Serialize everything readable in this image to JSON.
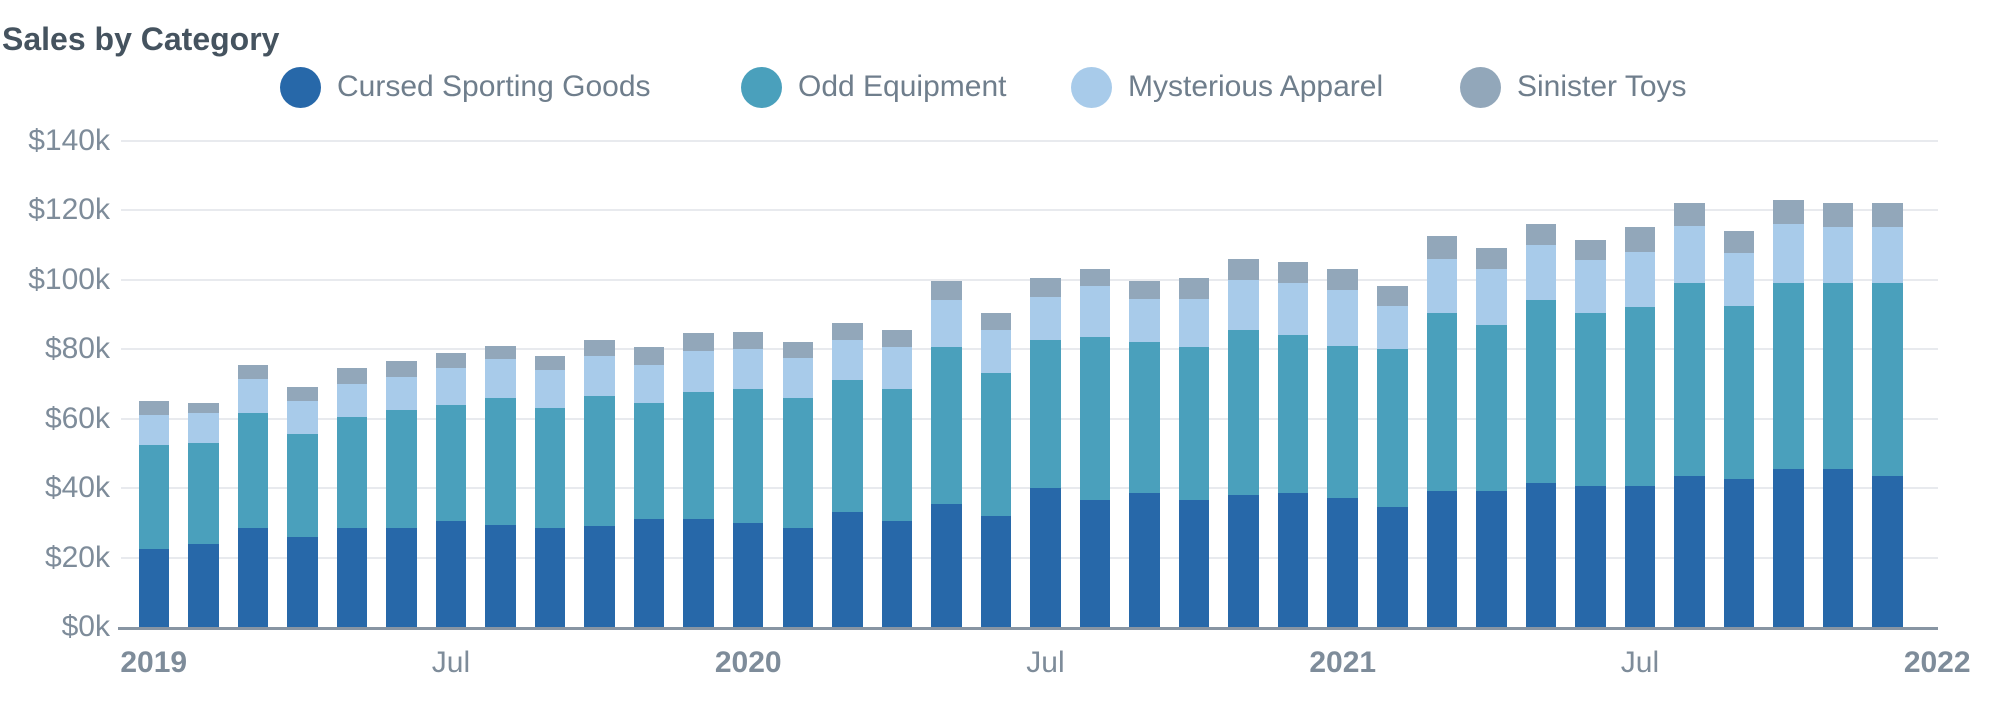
{
  "title": "Sales by Category",
  "chart_data": {
    "type": "bar",
    "stacked": true,
    "title": "Sales by Category",
    "unit": "USD thousands",
    "legend_position": "top",
    "grid": true,
    "ylim": [
      0,
      140
    ],
    "x": [
      "Jan 2019",
      "Feb 2019",
      "Mar 2019",
      "Apr 2019",
      "May 2019",
      "Jun 2019",
      "Jul 2019",
      "Aug 2019",
      "Sep 2019",
      "Oct 2019",
      "Nov 2019",
      "Dec 2019",
      "Jan 2020",
      "Feb 2020",
      "Mar 2020",
      "Apr 2020",
      "May 2020",
      "Jun 2020",
      "Jul 2020",
      "Aug 2020",
      "Sep 2020",
      "Oct 2020",
      "Nov 2020",
      "Dec 2020",
      "Jan 2021",
      "Feb 2021",
      "Mar 2021",
      "Apr 2021",
      "May 2021",
      "Jun 2021",
      "Jul 2021",
      "Aug 2021",
      "Sep 2021",
      "Oct 2021",
      "Nov 2021",
      "Dec 2021"
    ],
    "series": [
      {
        "name": "Cursed Sporting Goods",
        "slug": "cursed-sporting-goods",
        "color": "#2768a9",
        "values": [
          22.5,
          24,
          28.5,
          26,
          28.5,
          28.5,
          30.5,
          29.5,
          28.5,
          29,
          31,
          31,
          30,
          28.5,
          33,
          30.5,
          35.5,
          32,
          40,
          36.5,
          38.5,
          36.5,
          38,
          38.5,
          37,
          34.5,
          39,
          39,
          41.5,
          40.5,
          40.5,
          43.5,
          42.5,
          45.5,
          45.5,
          43.5
        ]
      },
      {
        "name": "Odd Equipment",
        "slug": "odd-equipment",
        "color": "#4aa0bc",
        "values": [
          30,
          29,
          33,
          29.5,
          32,
          34,
          33.5,
          36.5,
          34.5,
          37.5,
          33.5,
          36.5,
          38.5,
          37.5,
          38,
          38,
          45,
          41,
          42.5,
          47,
          43.5,
          44,
          47.5,
          45.5,
          44,
          45.5,
          51.5,
          48,
          52.5,
          50,
          51.5,
          55.5,
          50,
          53.5,
          53.5,
          55.5
        ]
      },
      {
        "name": "Mysterious Apparel",
        "slug": "mysterious-apparel",
        "color": "#a8cbea",
        "values": [
          8.5,
          8.5,
          10,
          9.5,
          9.5,
          9.5,
          10.5,
          11,
          11,
          11.5,
          11,
          12,
          11.5,
          11.5,
          11.5,
          12,
          13.5,
          12.5,
          12.5,
          14.5,
          12.5,
          14,
          14.5,
          15,
          16,
          12.5,
          15.5,
          16,
          16,
          15,
          16,
          16.5,
          15,
          17,
          16,
          16
        ]
      },
      {
        "name": "Sinister Toys",
        "slug": "sinister-toys",
        "color": "#92a7ba",
        "values": [
          4,
          3,
          4,
          4,
          4.5,
          4.5,
          4.5,
          4,
          4,
          4.5,
          5,
          5,
          5,
          4.5,
          5,
          5,
          5.5,
          5,
          5.5,
          5,
          5,
          6,
          6,
          6,
          6,
          5.5,
          6.5,
          6,
          6,
          6,
          7,
          6.5,
          6.5,
          7,
          7,
          7
        ]
      }
    ],
    "y_ticks": [
      {
        "value": 0,
        "label": "$0k"
      },
      {
        "value": 20,
        "label": "$20k"
      },
      {
        "value": 40,
        "label": "$40k"
      },
      {
        "value": 60,
        "label": "$60k"
      },
      {
        "value": 80,
        "label": "$80k"
      },
      {
        "value": 100,
        "label": "$100k"
      },
      {
        "value": 120,
        "label": "$120k"
      },
      {
        "value": 140,
        "label": "$140k"
      }
    ],
    "x_ticks": [
      {
        "label": "2019",
        "month_index": 0,
        "bold": true
      },
      {
        "label": "Jul",
        "month_index": 6,
        "bold": false
      },
      {
        "label": "2020",
        "month_index": 12,
        "bold": true
      },
      {
        "label": "Jul",
        "month_index": 18,
        "bold": false
      },
      {
        "label": "2021",
        "month_index": 24,
        "bold": true
      },
      {
        "label": "Jul",
        "month_index": 30,
        "bold": false
      },
      {
        "label": "2022",
        "month_index": 36,
        "bold": true
      }
    ],
    "colors": {
      "title_text": "#45535f",
      "axis_text": "#7e8c9a",
      "legend_text": "#6f7e8c",
      "gridline": "#e8eaee",
      "axis_line": "#8895a3"
    }
  }
}
